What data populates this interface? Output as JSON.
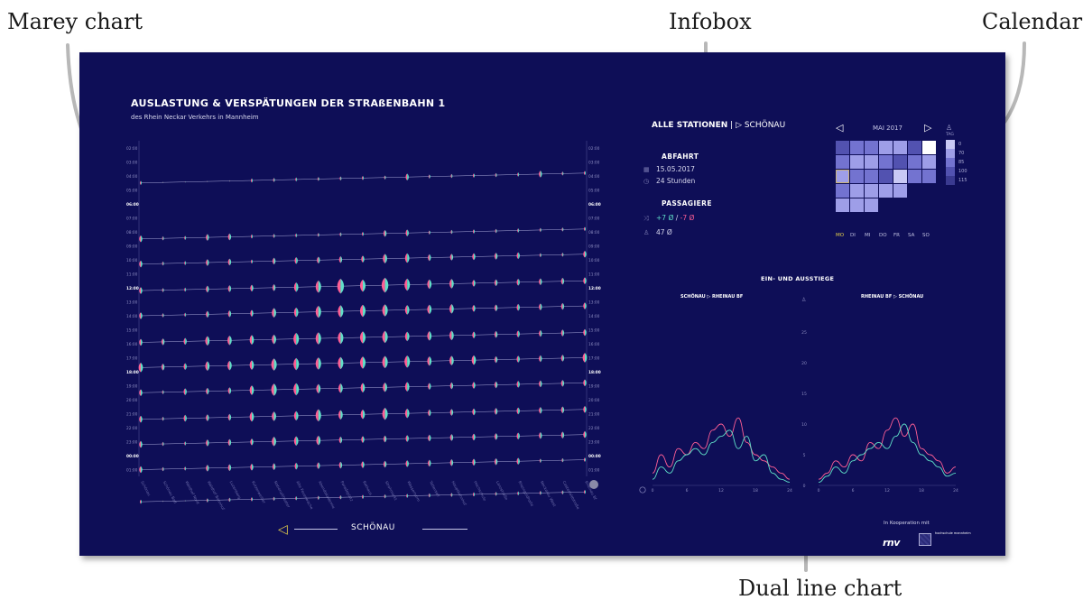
{
  "callouts": {
    "marey": "Marey chart",
    "infobox": "Infobox",
    "calendar": "Calendar",
    "dual": "Dual line chart"
  },
  "header": {
    "title": "AUSLASTUNG & VERSPÄTUNGEN DER STRAßENBAHN 1",
    "subtitle": "des Rhein Neckar Verkehrs in Mannheim"
  },
  "colors": {
    "background": "#0e0e57",
    "boarding": "#5fe0c8",
    "alighting": "#ff5f95",
    "accent": "#e8d24a"
  },
  "station_nav": {
    "icon": "triangle-left-icon",
    "label": "SCHÖNAU"
  },
  "infobox": {
    "station_all": "ALLE STATIONEN",
    "separator": "|",
    "station_selected": "▷ SCHÖNAU",
    "departure_heading": "ABFAHRT",
    "date": "15.05.2017",
    "duration": "24 Stunden",
    "passengers_heading": "PASSAGIERE",
    "delay_plus": "+7 Ø",
    "delay_sep": "/",
    "delay_minus": "-7 Ø",
    "passengers": "47 Ø"
  },
  "calendar": {
    "month": "MAI 2017",
    "weekdays": [
      "MO",
      "DI",
      "MI",
      "DO",
      "FR",
      "SA",
      "SO"
    ],
    "active_weekday": 0,
    "selected_cell": 14,
    "legend_unit": "TAG",
    "legend_levels": [
      "0",
      "70",
      "85",
      "100",
      "115"
    ],
    "legend_colors": [
      "#c9c9f5",
      "#9e9ee8",
      "#7373d0",
      "#5252b0",
      "#3a3a90"
    ],
    "cells": [
      3,
      2,
      2,
      1,
      1,
      3,
      5,
      2,
      1,
      1,
      2,
      3,
      2,
      1,
      1,
      2,
      2,
      3,
      0,
      2,
      2,
      2,
      1,
      1,
      1,
      1,
      null,
      null,
      1,
      1,
      1,
      null,
      null,
      null,
      null
    ]
  },
  "ein_aus": {
    "title": "EIN- UND AUSSTIEGE",
    "dir_left": "SCHÖNAU ▷ RHEINAU BF",
    "dir_right": "RHEINAU BF ▷ SCHÖNAU",
    "y_ticks": [
      "25",
      "20",
      "15",
      "10",
      "5",
      "0"
    ],
    "x_ticks": [
      "0",
      "6",
      "12",
      "18",
      "24"
    ]
  },
  "chart_data": [
    {
      "type": "line",
      "title": "SCHÖNAU ▷ RHEINAU BF",
      "x": [
        0,
        1.5,
        3,
        4.5,
        6,
        7.5,
        9,
        10.5,
        12,
        13.5,
        15,
        16.5,
        18,
        19.5,
        21,
        22.5,
        24
      ],
      "xlim": [
        0,
        24
      ],
      "ylim": [
        0,
        25
      ],
      "series": [
        {
          "color": "#ff5f95",
          "values": [
            2,
            5,
            3,
            6,
            5,
            7,
            6,
            9,
            10,
            8,
            11,
            7,
            5,
            4,
            3,
            2,
            1
          ]
        },
        {
          "color": "#5fe0c8",
          "values": [
            1,
            3,
            2,
            4,
            5,
            6,
            5,
            7,
            8,
            9,
            6,
            8,
            4,
            5,
            2,
            1,
            0.5
          ]
        }
      ]
    },
    {
      "type": "line",
      "title": "RHEINAU BF ▷ SCHÖNAU",
      "x": [
        0,
        1.5,
        3,
        4.5,
        6,
        7.5,
        9,
        10.5,
        12,
        13.5,
        15,
        16.5,
        18,
        19.5,
        21,
        22.5,
        24
      ],
      "xlim": [
        0,
        24
      ],
      "ylim": [
        0,
        25
      ],
      "series": [
        {
          "color": "#ff5f95",
          "values": [
            1,
            2,
            4,
            3,
            5,
            4,
            7,
            6,
            9,
            11,
            8,
            10,
            6,
            5,
            4,
            2,
            3
          ]
        },
        {
          "color": "#5fe0c8",
          "values": [
            0.5,
            1.5,
            3,
            2,
            4,
            5,
            6,
            7,
            6,
            8,
            10,
            7,
            5,
            4,
            3,
            1.5,
            2
          ]
        }
      ]
    },
    {
      "type": "scatter",
      "title": "AUSLASTUNG & VERSPÄTUNGEN DER STRAßENBAHN 1",
      "hours": [
        "02:00",
        "03:00",
        "04:00",
        "05:00",
        "06:00",
        "07:00",
        "08:00",
        "09:00",
        "10:00",
        "11:00",
        "12:00",
        "13:00",
        "14:00",
        "15:00",
        "16:00",
        "17:00",
        "18:00",
        "19:00",
        "20:00",
        "21:00",
        "22:00",
        "23:00",
        "00:00",
        "01:00"
      ],
      "stations": [
        "Schönau",
        "Schönau Bad",
        "Waldhof Nord",
        "Waldhof Bahnhof",
        "Luzenberg",
        "Kutzerweiher",
        "Nationaltheater",
        "Alte Feuerwache",
        "Abendakademie",
        "Paradeplatz",
        "Rathaus",
        "Strohmarkt",
        "Wasserturm",
        "Tattersall",
        "Hauptbahnhof",
        "Hochschule",
        "Lanzstraße",
        "Rheingoldhalle",
        "Neckarau West",
        "Casterfeldstraße",
        "Rheinau Bf"
      ],
      "trips": [
        {
          "start_hour": 4.5,
          "sizes": [
            1,
            0,
            0,
            0,
            0,
            1,
            1,
            1,
            1,
            1,
            1,
            1,
            2,
            1,
            1,
            1,
            1,
            1,
            2,
            1,
            1
          ]
        },
        {
          "start_hour": 8.5,
          "sizes": [
            2,
            1,
            1,
            2,
            2,
            1,
            1,
            1,
            1,
            1,
            1,
            2,
            2,
            1,
            1,
            1,
            1,
            1,
            1,
            1,
            1
          ]
        },
        {
          "start_hour": 10.3,
          "sizes": [
            2,
            1,
            1,
            2,
            2,
            1,
            2,
            2,
            2,
            2,
            2,
            3,
            3,
            2,
            2,
            2,
            2,
            2,
            1,
            1,
            2
          ]
        },
        {
          "start_hour": 12.2,
          "sizes": [
            2,
            1,
            1,
            2,
            2,
            2,
            2,
            3,
            4,
            5,
            4,
            5,
            4,
            3,
            3,
            2,
            2,
            2,
            2,
            2,
            2
          ]
        },
        {
          "start_hour": 14.0,
          "sizes": [
            2,
            1,
            1,
            2,
            2,
            2,
            3,
            3,
            4,
            4,
            4,
            4,
            3,
            3,
            3,
            2,
            2,
            2,
            2,
            2,
            2
          ]
        },
        {
          "start_hour": 15.9,
          "sizes": [
            2,
            2,
            2,
            3,
            3,
            3,
            3,
            4,
            4,
            4,
            4,
            4,
            3,
            3,
            3,
            2,
            2,
            2,
            2,
            2,
            2
          ]
        },
        {
          "start_hour": 17.7,
          "sizes": [
            3,
            2,
            2,
            3,
            3,
            3,
            4,
            4,
            4,
            4,
            4,
            4,
            4,
            3,
            3,
            3,
            2,
            2,
            2,
            2,
            3
          ]
        },
        {
          "start_hour": 19.5,
          "sizes": [
            2,
            1,
            2,
            2,
            2,
            3,
            4,
            4,
            3,
            3,
            3,
            3,
            3,
            2,
            2,
            2,
            2,
            2,
            2,
            2,
            2
          ]
        },
        {
          "start_hour": 21.4,
          "sizes": [
            2,
            1,
            2,
            2,
            2,
            3,
            3,
            3,
            4,
            3,
            3,
            4,
            3,
            2,
            2,
            2,
            2,
            2,
            2,
            2,
            2
          ]
        },
        {
          "start_hour": 23.2,
          "sizes": [
            2,
            1,
            1,
            2,
            2,
            2,
            3,
            3,
            3,
            2,
            2,
            2,
            2,
            2,
            2,
            2,
            2,
            2,
            2,
            2,
            2
          ]
        },
        {
          "start_hour": 25.0,
          "sizes": [
            2,
            1,
            1,
            2,
            2,
            2,
            2,
            2,
            2,
            2,
            2,
            2,
            2,
            2,
            2,
            2,
            2,
            2,
            1,
            1,
            1
          ]
        },
        {
          "start_hour": 27.3,
          "sizes": [
            1,
            0,
            0,
            1,
            1,
            1,
            1,
            1,
            1,
            1,
            1,
            1,
            1,
            1,
            1,
            1,
            1,
            1,
            1,
            1,
            1
          ]
        }
      ]
    }
  ],
  "coop": {
    "label": "In Kooperation mit",
    "logo_rnv": "rnv",
    "logo_hs": "hochschule mannheim"
  }
}
